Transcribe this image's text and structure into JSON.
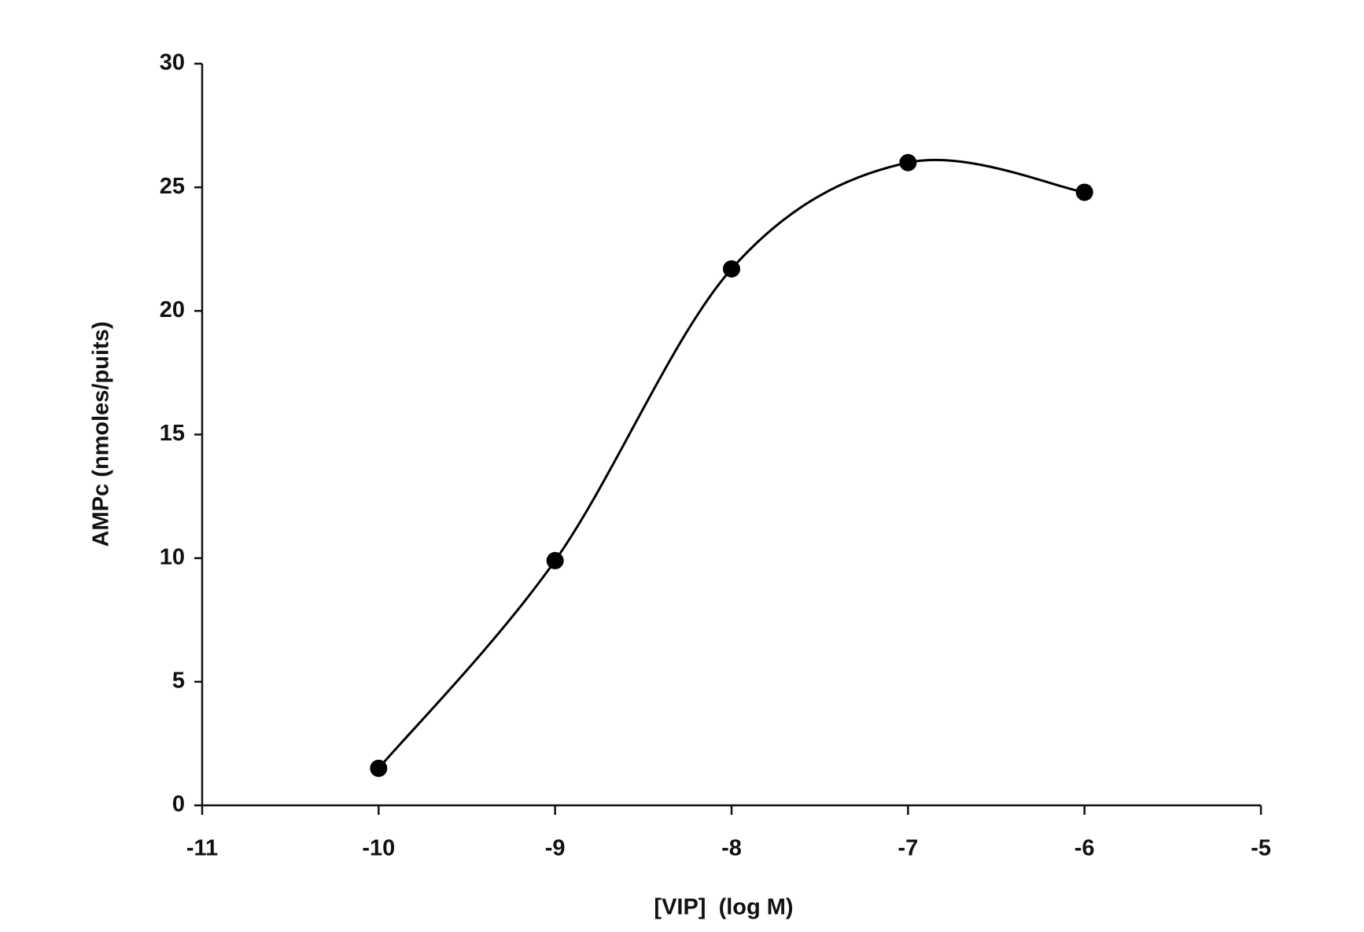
{
  "chart_data": {
    "type": "line",
    "x_label": "[VIP]  (log M)",
    "y_label": "AMPc (nmoles/puits)",
    "x": [
      -10,
      -9,
      -8,
      -7,
      -6
    ],
    "series": [
      {
        "name": null,
        "color": "#000000",
        "values": [
          1.5,
          9.9,
          21.7,
          26.0,
          24.8
        ]
      }
    ],
    "xlim": [
      -11,
      -5
    ],
    "xticks": [
      -11,
      -10,
      -9,
      -8,
      -7,
      -6,
      -5
    ],
    "ylim": [
      0,
      30
    ],
    "yticks": [
      0,
      5,
      10,
      15,
      20,
      25,
      30
    ],
    "smooth": true,
    "markers": true,
    "grid": false
  }
}
